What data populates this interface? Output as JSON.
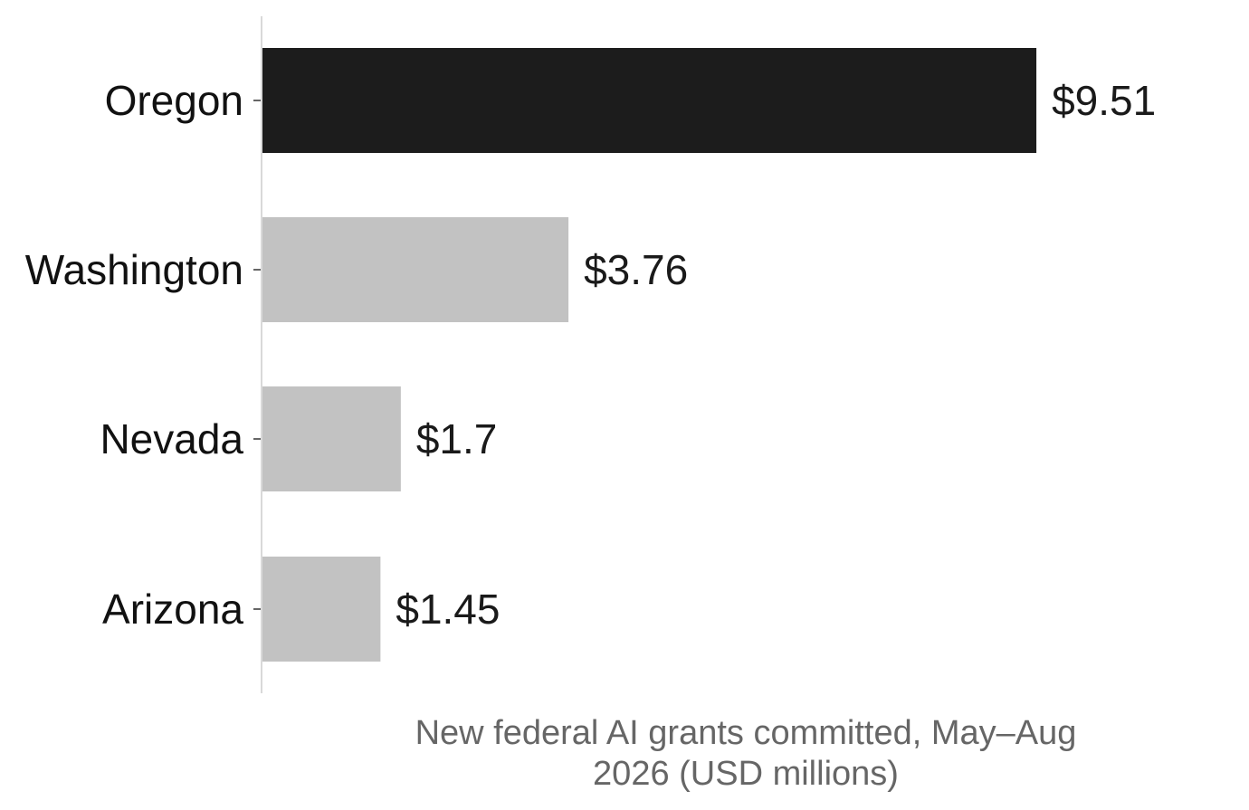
{
  "chart_data": {
    "type": "bar",
    "orientation": "horizontal",
    "categories": [
      "Oregon",
      "Washington",
      "Nevada",
      "Arizona"
    ],
    "values": [
      9.51,
      3.76,
      1.7,
      1.45
    ],
    "value_labels": [
      "$9.51",
      "$3.76",
      "$1.7",
      "$1.45"
    ],
    "highlight_index": 0,
    "title": "",
    "xlabel_lines": [
      "New federal AI grants committed, May–Aug",
      "2026 (USD millions)"
    ],
    "ylabel": "",
    "xlim": [
      0,
      11.5
    ],
    "grid": false,
    "colors": {
      "highlight": "#1c1c1c",
      "default": "#c2c2c2",
      "axis": "#d9d9d9",
      "label": "#111111",
      "value_label": "#1a1a1a",
      "axis_title": "#666666"
    }
  }
}
